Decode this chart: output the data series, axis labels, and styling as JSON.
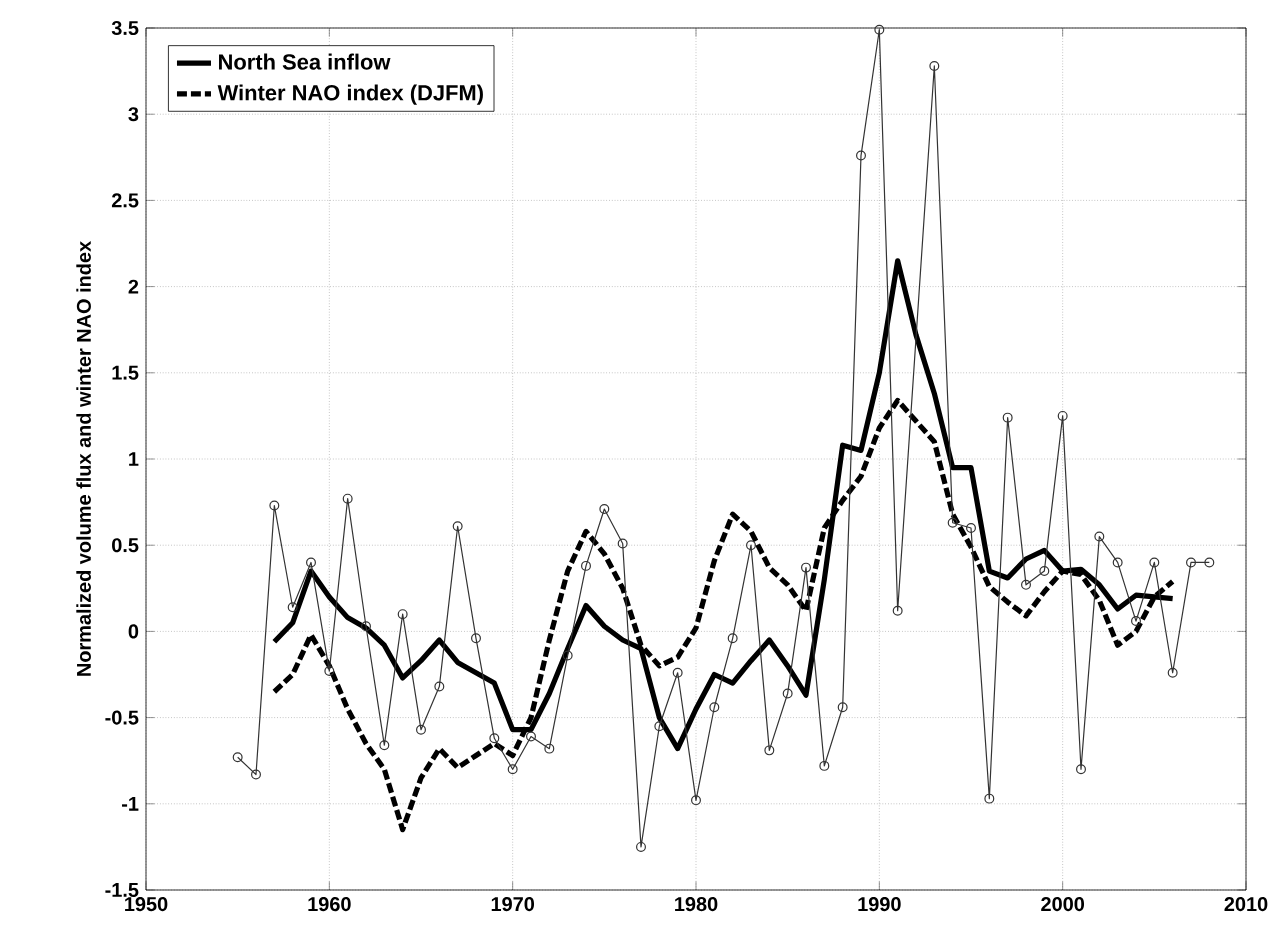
{
  "chart_data": {
    "type": "line",
    "ylabel": "Normalized volume flux and winter NAO index",
    "xlim": [
      1950,
      2010
    ],
    "ylim": [
      -1.5,
      3.5
    ],
    "xticks": [
      1950,
      1960,
      1970,
      1980,
      1990,
      2000,
      2010
    ],
    "yticks": [
      -1.5,
      -1,
      -0.5,
      0,
      0.5,
      1,
      1.5,
      2,
      2.5,
      3,
      3.5
    ],
    "grid": true,
    "legend": "top left",
    "series": [
      {
        "name": "North Sea inflow",
        "color": "#000000",
        "line_style": "solid",
        "x": [
          1957,
          1958,
          1959,
          1960,
          1961,
          1962,
          1963,
          1964,
          1965,
          1966,
          1967,
          1968,
          1969,
          1970,
          1971,
          1972,
          1973,
          1974,
          1975,
          1976,
          1977,
          1978,
          1979,
          1980,
          1981,
          1982,
          1983,
          1984,
          1985,
          1986,
          1987,
          1988,
          1989,
          1990,
          1991,
          1992,
          1993,
          1994,
          1995,
          1996,
          1997,
          1998,
          1999,
          2000,
          2001,
          2002,
          2003,
          2004,
          2005,
          2006
        ],
        "values": [
          -0.06,
          0.05,
          0.35,
          0.2,
          0.08,
          0.02,
          -0.08,
          -0.27,
          -0.17,
          -0.05,
          -0.18,
          -0.24,
          -0.3,
          -0.57,
          -0.57,
          -0.36,
          -0.1,
          0.15,
          0.03,
          -0.05,
          -0.1,
          -0.5,
          -0.68,
          -0.45,
          -0.25,
          -0.3,
          -0.17,
          -0.05,
          -0.2,
          -0.37,
          0.3,
          1.08,
          1.05,
          1.5,
          2.15,
          1.72,
          1.38,
          0.95,
          0.95,
          0.35,
          0.31,
          0.42,
          0.47,
          0.35,
          0.36,
          0.27,
          0.13,
          0.21,
          0.2,
          0.19
        ]
      },
      {
        "name": "Winter NAO index (DJFM)",
        "color": "#000000",
        "line_style": "dashed",
        "x": [
          1957,
          1958,
          1959,
          1960,
          1961,
          1962,
          1963,
          1964,
          1965,
          1966,
          1967,
          1968,
          1969,
          1970,
          1971,
          1972,
          1973,
          1974,
          1975,
          1976,
          1977,
          1978,
          1979,
          1980,
          1981,
          1982,
          1983,
          1984,
          1985,
          1986,
          1987,
          1988,
          1989,
          1990,
          1991,
          1992,
          1993,
          1994,
          1995,
          1996,
          1997,
          1998,
          1999,
          2000,
          2001,
          2002,
          2003,
          2004,
          2005,
          2006
        ],
        "values": [
          -0.35,
          -0.25,
          -0.02,
          -0.2,
          -0.45,
          -0.65,
          -0.8,
          -1.15,
          -0.85,
          -0.68,
          -0.79,
          -0.72,
          -0.65,
          -0.72,
          -0.5,
          -0.05,
          0.35,
          0.58,
          0.45,
          0.25,
          -0.08,
          -0.2,
          -0.15,
          0.02,
          0.41,
          0.68,
          0.58,
          0.37,
          0.27,
          0.12,
          0.6,
          0.76,
          0.9,
          1.18,
          1.34,
          1.22,
          1.1,
          0.68,
          0.49,
          0.26,
          0.17,
          0.09,
          0.23,
          0.35,
          0.33,
          0.18,
          -0.08,
          0.0,
          0.2,
          0.29
        ]
      },
      {
        "color": "#333333",
        "line_style": "solid",
        "marker": "circle",
        "x": [
          1955,
          1956,
          1957,
          1958,
          1959,
          1960,
          1961,
          1962,
          1963,
          1964,
          1965,
          1966,
          1967,
          1968,
          1969,
          1970,
          1971,
          1972,
          1973,
          1974,
          1975,
          1976,
          1977,
          1978,
          1979,
          1980,
          1981,
          1982,
          1983,
          1984,
          1985,
          1986,
          1987,
          1988,
          1989,
          1990,
          1991,
          1993,
          1994,
          1995,
          1996,
          1997,
          1998,
          1999,
          2000,
          2001,
          2002,
          2003,
          2004,
          2005,
          2006,
          2007,
          2008
        ],
        "values": [
          -0.73,
          -0.83,
          0.73,
          0.14,
          0.4,
          -0.23,
          0.77,
          0.03,
          -0.66,
          0.1,
          -0.57,
          -0.32,
          0.61,
          -0.04,
          -0.62,
          -0.8,
          -0.61,
          -0.68,
          -0.14,
          0.38,
          0.71,
          0.51,
          -1.25,
          -0.55,
          -0.24,
          -0.98,
          -0.44,
          -0.04,
          0.5,
          -0.69,
          -0.36,
          0.37,
          -0.78,
          -0.44,
          2.76,
          3.49,
          0.12,
          3.28,
          0.63,
          0.6,
          -0.97,
          1.24,
          0.27,
          0.35,
          1.25,
          -0.8,
          0.55,
          0.4,
          0.06,
          0.4,
          -0.24,
          0.4,
          0.4
        ]
      }
    ]
  }
}
